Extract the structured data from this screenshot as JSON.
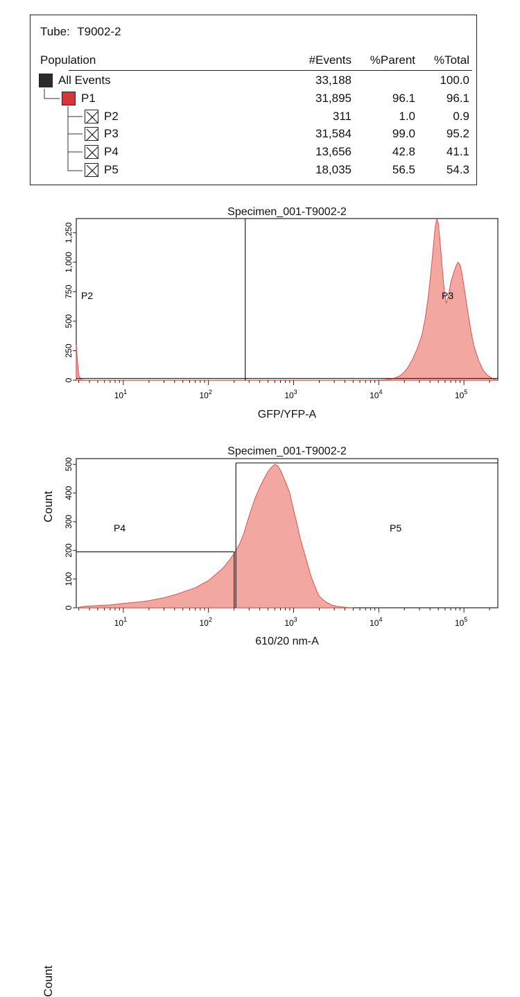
{
  "stats_table": {
    "tube_label": "Tube:",
    "tube_name": "T9002-2",
    "headers": {
      "population": "Population",
      "events": "#Events",
      "parent": "%Parent",
      "total": "%Total"
    },
    "rows": [
      {
        "name": "All Events",
        "events": "33,188",
        "parent": "",
        "total": "100.0",
        "swatch": "#2b2b2b",
        "level": 0
      },
      {
        "name": "P1",
        "events": "31,895",
        "parent": "96.1",
        "total": "96.1",
        "swatch": "#d8343a",
        "level": 1
      },
      {
        "name": "P2",
        "events": "311",
        "parent": "1.0",
        "total": "0.9",
        "swatch": "x",
        "level": 2
      },
      {
        "name": "P3",
        "events": "31,584",
        "parent": "99.0",
        "total": "95.2",
        "swatch": "x",
        "level": 2
      },
      {
        "name": "P4",
        "events": "13,656",
        "parent": "42.8",
        "total": "41.1",
        "swatch": "x",
        "level": 2
      },
      {
        "name": "P5",
        "events": "18,035",
        "parent": "56.5",
        "total": "54.3",
        "swatch": "x",
        "level": 2
      }
    ]
  },
  "chart_data": [
    {
      "type": "area",
      "title": "Specimen_001-T9002-2",
      "xlabel": "GFP/YFP-A",
      "ylabel": "Count",
      "x_scale": "log",
      "xlim": [
        2.8,
        250000
      ],
      "ylim": [
        0,
        1370
      ],
      "yticks": [
        0,
        250,
        500,
        750,
        1000,
        1250
      ],
      "ytick_labels": [
        "0",
        "250",
        "500",
        "750",
        "1,000",
        "1,250"
      ],
      "xticks": [
        10,
        100,
        1000,
        10000,
        100000
      ],
      "xtick_labels": [
        {
          "base": "10",
          "exp": "1"
        },
        {
          "base": "10",
          "exp": "2"
        },
        {
          "base": "10",
          "exp": "3"
        },
        {
          "base": "10",
          "exp": "4"
        },
        {
          "base": "10",
          "exp": "5"
        }
      ],
      "fill_color": "#f2a8a0",
      "line_color": "#d9534f",
      "series": [
        {
          "x": [
            2.8,
            2.9,
            3.0,
            3.2,
            3.5,
            9000,
            12000,
            15000,
            18000,
            20000,
            22000,
            25000,
            28000,
            32000,
            35000,
            38000,
            40000,
            42000,
            44000,
            46000,
            48000,
            50000,
            52000,
            55000,
            58000,
            62000,
            66000,
            70000,
            75000,
            80000,
            85000,
            90000,
            95000,
            100000,
            110000,
            120000,
            130000,
            150000,
            170000,
            190000,
            210000,
            230000,
            250000
          ],
          "y": [
            300,
            150,
            40,
            5,
            0,
            0,
            5,
            15,
            40,
            70,
            110,
            180,
            260,
            380,
            520,
            700,
            850,
            1000,
            1150,
            1300,
            1370,
            1330,
            1200,
            1000,
            800,
            650,
            720,
            830,
            900,
            960,
            1000,
            980,
            900,
            800,
            600,
            430,
            300,
            160,
            80,
            40,
            20,
            8,
            0
          ]
        }
      ],
      "gates": [
        {
          "name": "P2",
          "x1": 2.8,
          "x2": 270,
          "y": 15
        },
        {
          "name": "P3",
          "x1": 270,
          "x2": 250000,
          "y": 15
        }
      ]
    },
    {
      "type": "area",
      "title": "Specimen_001-T9002-2",
      "xlabel": "610/20 nm-A",
      "ylabel": "Count",
      "x_scale": "log",
      "xlim": [
        2.8,
        250000
      ],
      "ylim": [
        0,
        520
      ],
      "yticks": [
        0,
        100,
        200,
        300,
        400,
        500
      ],
      "ytick_labels": [
        "0",
        "100",
        "200",
        "300",
        "400",
        "500"
      ],
      "xticks": [
        10,
        100,
        1000,
        10000,
        100000
      ],
      "xtick_labels": [
        {
          "base": "10",
          "exp": "1"
        },
        {
          "base": "10",
          "exp": "2"
        },
        {
          "base": "10",
          "exp": "3"
        },
        {
          "base": "10",
          "exp": "4"
        },
        {
          "base": "10",
          "exp": "5"
        }
      ],
      "fill_color": "#f2a8a0",
      "line_color": "#d9534f",
      "series": [
        {
          "x": [
            2.8,
            3.5,
            5,
            7,
            10,
            15,
            20,
            30,
            40,
            50,
            70,
            100,
            120,
            150,
            180,
            200,
            230,
            260,
            300,
            350,
            400,
            450,
            500,
            550,
            600,
            650,
            700,
            800,
            900,
            1000,
            1100,
            1200,
            1400,
            1600,
            1800,
            2000,
            2400,
            2800,
            3200,
            4000,
            5000
          ],
          "y": [
            0,
            5,
            8,
            10,
            15,
            20,
            25,
            35,
            45,
            55,
            70,
            95,
            115,
            140,
            170,
            190,
            220,
            260,
            320,
            380,
            420,
            450,
            475,
            490,
            500,
            495,
            480,
            440,
            400,
            340,
            290,
            240,
            170,
            110,
            70,
            40,
            20,
            10,
            5,
            2,
            0
          ]
        }
      ],
      "gates": [
        {
          "name": "P4",
          "x1": 2.8,
          "x2": 200,
          "y": 195
        },
        {
          "name": "P5",
          "x1": 210,
          "x2": 250000,
          "y": 505
        }
      ]
    }
  ]
}
